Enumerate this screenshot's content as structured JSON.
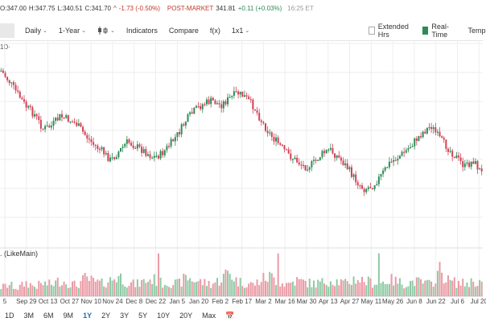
{
  "quote": {
    "open": "O:347.00",
    "high": "H:347.75",
    "low": "L:340.51",
    "close": "C:341.70",
    "change": "-1.73 (-0.50%)",
    "post_label": "POST-MARKET",
    "post_price": "341.81",
    "post_change": "+0.11 (+0.03%)",
    "time": "16:25 ET"
  },
  "toolbar": {
    "daily": "Daily",
    "period": "1-Year",
    "indicators": "Indicators",
    "compare": "Compare",
    "fx": "f(x)",
    "layout": "1x1",
    "extended": "Extended Hrs",
    "realtime": "Real-Time",
    "templates": "Temp"
  },
  "chart": {
    "interval_label": "1D·",
    "volume_label": ". (LikeMain)",
    "x_labels": [
      "5",
      "Sep 29",
      "Oct 13",
      "Oct 27",
      "Nov 10",
      "Nov 24",
      "Dec 8",
      "Dec 22",
      "Jan 5",
      "Jan 20",
      "Feb 2",
      "Feb 17",
      "Mar 2",
      "Mar 16",
      "Mar 30",
      "Apr 13",
      "Apr 27",
      "May 11",
      "May 26",
      "Jun 8",
      "Jun 22",
      "Jul 6",
      "Jul 20"
    ],
    "colors": {
      "up": "#2e8b57",
      "down": "#d24155",
      "up_vol": "#8fc9a4",
      "down_vol": "#eb9aa5"
    }
  },
  "chart_data": {
    "type": "candlestick",
    "close_path": [
      0.05,
      0.12,
      0.2,
      0.28,
      0.33,
      0.42,
      0.4,
      0.34,
      0.36,
      0.39,
      0.46,
      0.52,
      0.56,
      0.62,
      0.56,
      0.5,
      0.53,
      0.56,
      0.6,
      0.58,
      0.52,
      0.45,
      0.36,
      0.3,
      0.26,
      0.24,
      0.27,
      0.23,
      0.19,
      0.22,
      0.28,
      0.38,
      0.46,
      0.52,
      0.58,
      0.62,
      0.66,
      0.64,
      0.58,
      0.55,
      0.6,
      0.66,
      0.74,
      0.8,
      0.78,
      0.72,
      0.64,
      0.6,
      0.56,
      0.5,
      0.44,
      0.4,
      0.48,
      0.54,
      0.6,
      0.66,
      0.62,
      0.7
    ],
    "volume": [
      0.2,
      0.25,
      0.18,
      0.3,
      0.22,
      0.28,
      0.26,
      0.35,
      0.3,
      0.24,
      0.4,
      0.32,
      0.28,
      0.36,
      0.45,
      0.3,
      0.26,
      0.33,
      0.38,
      0.29,
      0.31,
      0.27,
      0.42,
      0.35,
      0.3,
      0.28,
      0.36,
      0.55,
      0.33,
      0.29,
      0.26,
      0.38,
      0.44,
      0.3,
      0.27,
      0.35,
      0.31,
      0.28,
      0.3,
      0.36,
      0.33,
      0.27,
      0.4,
      0.34,
      0.31,
      0.29,
      0.37,
      0.32,
      0.28,
      0.33,
      0.3,
      0.26,
      0.58,
      0.35,
      0.3,
      0.28,
      0.33,
      0.31
    ]
  },
  "ranges": [
    "1D",
    "3M",
    "6M",
    "9M",
    "1Y",
    "2Y",
    "3Y",
    "5Y",
    "10Y",
    "20Y",
    "Max"
  ],
  "active_range": "1Y"
}
